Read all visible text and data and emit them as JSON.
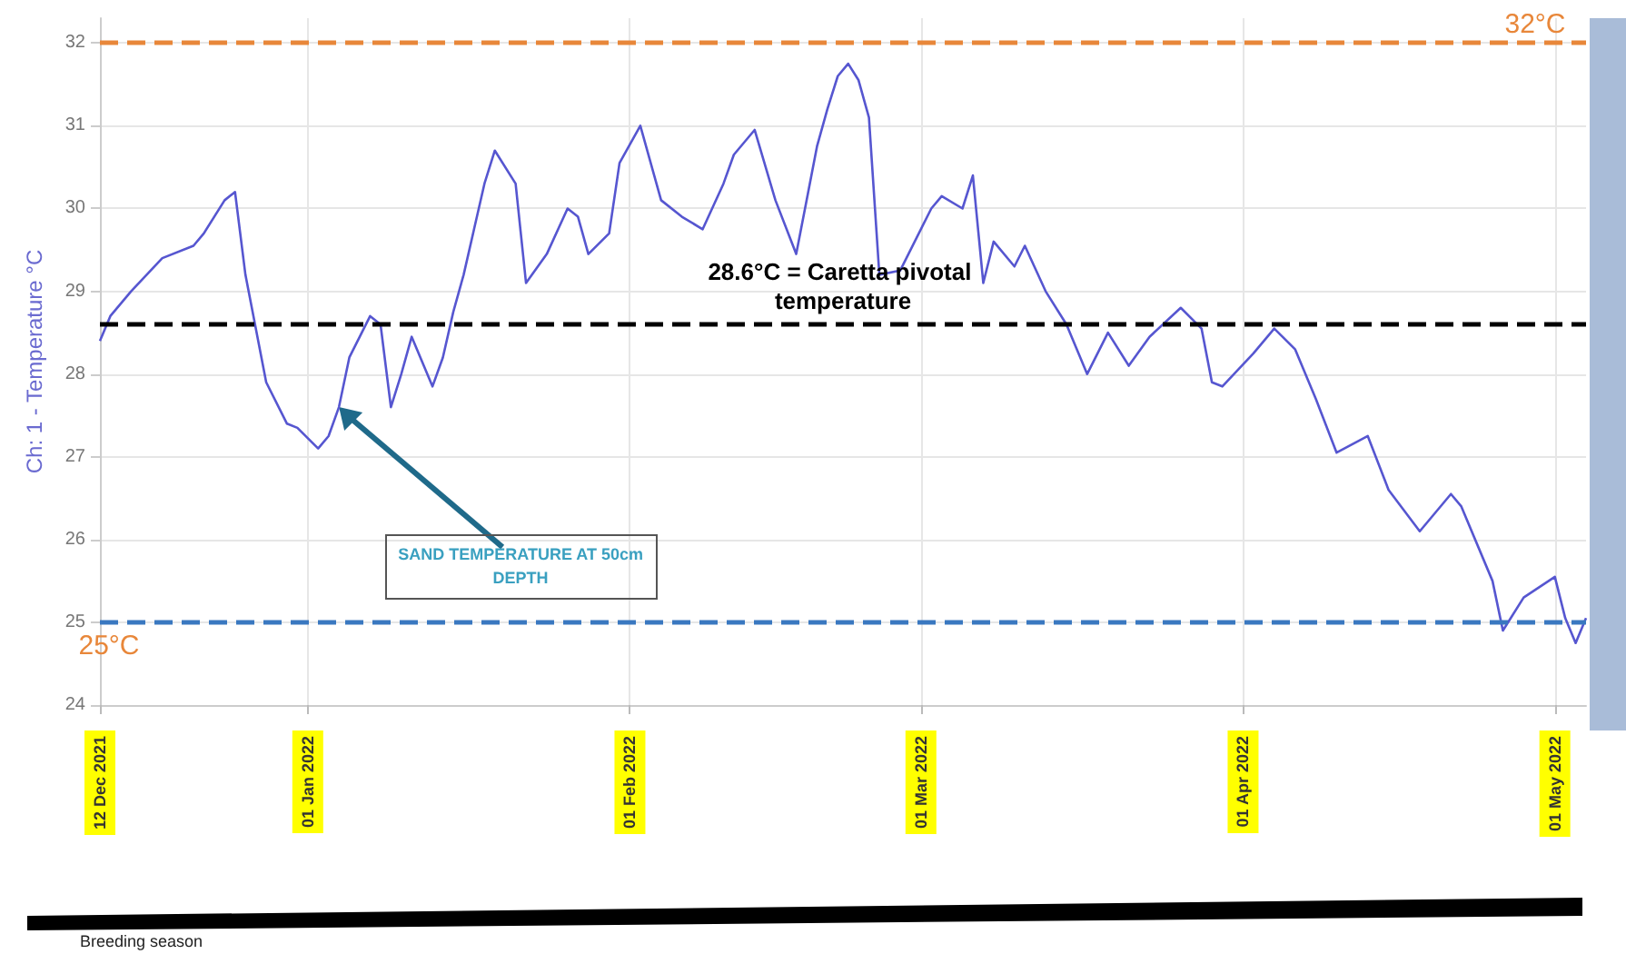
{
  "chart_data": {
    "type": "line",
    "ylabel": "Ch: 1 - Temperature °C",
    "x": [
      "2021-12-12",
      "2021-12-13",
      "2021-12-15",
      "2021-12-18",
      "2021-12-21",
      "2021-12-22",
      "2021-12-24",
      "2021-12-25",
      "2021-12-26",
      "2021-12-28",
      "2021-12-30",
      "2021-12-31",
      "2022-01-02",
      "2022-01-03",
      "2022-01-04",
      "2022-01-05",
      "2022-01-07",
      "2022-01-08",
      "2022-01-09",
      "2022-01-10",
      "2022-01-11",
      "2022-01-13",
      "2022-01-14",
      "2022-01-15",
      "2022-01-16",
      "2022-01-17",
      "2022-01-18",
      "2022-01-19",
      "2022-01-21",
      "2022-01-22",
      "2022-01-24",
      "2022-01-26",
      "2022-01-27",
      "2022-01-28",
      "2022-01-30",
      "2022-01-31",
      "2022-02-02",
      "2022-02-04",
      "2022-02-06",
      "2022-02-08",
      "2022-02-10",
      "2022-02-11",
      "2022-02-13",
      "2022-02-15",
      "2022-02-17",
      "2022-02-18",
      "2022-02-19",
      "2022-02-20",
      "2022-02-21",
      "2022-02-22",
      "2022-02-23",
      "2022-02-24",
      "2022-02-25",
      "2022-02-27",
      "2022-03-02",
      "2022-03-03",
      "2022-03-05",
      "2022-03-06",
      "2022-03-07",
      "2022-03-08",
      "2022-03-10",
      "2022-03-11",
      "2022-03-13",
      "2022-03-15",
      "2022-03-17",
      "2022-03-19",
      "2022-03-21",
      "2022-03-23",
      "2022-03-26",
      "2022-03-28",
      "2022-03-29",
      "2022-03-30",
      "2022-04-02",
      "2022-04-04",
      "2022-04-06",
      "2022-04-08",
      "2022-04-10",
      "2022-04-13",
      "2022-04-15",
      "2022-04-18",
      "2022-04-21",
      "2022-04-22",
      "2022-04-25",
      "2022-04-26",
      "2022-04-28",
      "2022-05-01",
      "2022-05-02",
      "2022-05-03",
      "2022-05-04"
    ],
    "series": [
      {
        "color": "#5656d0",
        "values": [
          28.4,
          28.7,
          29.0,
          29.4,
          29.55,
          29.7,
          30.1,
          30.2,
          29.2,
          27.9,
          27.4,
          27.35,
          27.1,
          27.25,
          27.6,
          28.2,
          28.7,
          28.6,
          27.6,
          28.0,
          28.45,
          27.85,
          28.2,
          28.75,
          29.2,
          29.75,
          30.3,
          30.7,
          30.3,
          29.1,
          29.45,
          30.0,
          29.9,
          29.45,
          29.7,
          30.55,
          31.0,
          30.1,
          29.9,
          29.75,
          30.3,
          30.65,
          30.95,
          30.1,
          29.45,
          30.1,
          30.75,
          31.2,
          31.6,
          31.75,
          31.55,
          31.1,
          29.2,
          29.25,
          30.0,
          30.15,
          30.0,
          30.4,
          29.1,
          29.6,
          29.3,
          29.55,
          29.0,
          28.6,
          28.0,
          28.5,
          28.1,
          28.45,
          28.8,
          28.55,
          27.9,
          27.85,
          28.25,
          28.55,
          28.3,
          27.7,
          27.05,
          27.25,
          26.6,
          26.1,
          26.55,
          26.4,
          25.5,
          24.9,
          25.3,
          25.55,
          25.05,
          24.75,
          25.05
        ]
      }
    ],
    "xlim": [
      "2021-12-12",
      "2022-05-04"
    ],
    "xticks": [
      {
        "value": "2021-12-12",
        "label": "12 Dec 2021"
      },
      {
        "value": "2022-01-01",
        "label": "01 Jan 2022"
      },
      {
        "value": "2022-02-01",
        "label": "01 Feb 2022"
      },
      {
        "value": "2022-03-01",
        "label": "01 Mar 2022"
      },
      {
        "value": "2022-04-01",
        "label": "01 Apr 2022"
      },
      {
        "value": "2022-05-01",
        "label": "01 May 2022"
      }
    ],
    "ylim": [
      24,
      32.3
    ],
    "yticks": [
      24,
      25,
      26,
      27,
      28,
      29,
      30,
      31,
      32
    ],
    "grid": true,
    "marker": "none",
    "line_style": "solid",
    "ref_lines": [
      {
        "axis": "y",
        "value": 32,
        "label": "32°C",
        "color": "#e8873a",
        "line_style": "dashed"
      },
      {
        "axis": "y",
        "value": 28.6,
        "label": "28.6°C = Caretta pivotal temperature",
        "color": "#000000",
        "line_style": "dashed"
      },
      {
        "axis": "y",
        "value": 25,
        "label": "25°C",
        "color": "#3a78c0",
        "line_style": "dashed"
      }
    ],
    "annotations": [
      {
        "text": "SAND TEMPERATURE AT 50cm DEPTH",
        "x": "2022-01-04",
        "y": 27.6
      },
      "Breeding season"
    ]
  }
}
